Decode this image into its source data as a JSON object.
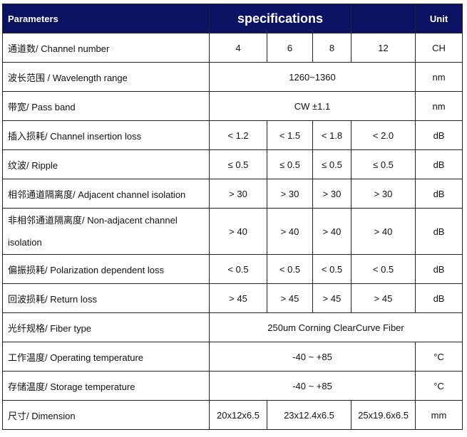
{
  "header": {
    "parameters": "Parameters",
    "specifications": "specifications",
    "unit": "Unit"
  },
  "rows": [
    {
      "param": "通道数/ Channel number",
      "values": [
        "4",
        "6",
        "8",
        "12"
      ],
      "unit": "CH"
    },
    {
      "param": "波长范围  / Wavelength range",
      "value": "1260~1360",
      "unit": "nm"
    },
    {
      "param": "带宽/ Pass band",
      "value": "CW ±1.1",
      "unit": "nm"
    },
    {
      "param": "插入损耗/ Channel insertion loss",
      "values": [
        "< 1.2",
        "< 1.5",
        "< 1.8",
        "< 2.0"
      ],
      "unit": "dB"
    },
    {
      "param": "纹波/ Ripple",
      "values": [
        "≤ 0.5",
        "≤ 0.5",
        "≤ 0.5",
        "≤ 0.5"
      ],
      "unit": "dB"
    },
    {
      "param": "相邻通道隔离度/ Adjacent channel isolation",
      "values": [
        "> 30",
        "> 30",
        "> 30",
        "> 30"
      ],
      "unit": "dB"
    },
    {
      "param": "非相邻通道隔离度/ Non-adjacent channel isolation",
      "values": [
        "> 40",
        "> 40",
        "> 40",
        "> 40"
      ],
      "unit": "dB"
    },
    {
      "param": "偏振损耗/ Polarization dependent loss",
      "values": [
        "< 0.5",
        "< 0.5",
        "< 0.5",
        "< 0.5"
      ],
      "unit": "dB"
    },
    {
      "param": "回波损耗/ Return loss",
      "values": [
        "> 45",
        "> 45",
        "> 45",
        "> 45"
      ],
      "unit": "dB"
    },
    {
      "param": "光纤规格/ Fiber type",
      "value": "250um Corning ClearCurve Fiber"
    },
    {
      "param": "工作温度/ Operating temperature",
      "value": "-40 ~ +85",
      "unit": "°C"
    },
    {
      "param": "存储温度/ Storage temperature",
      "value": "-40 ~ +85",
      "unit": "°C"
    },
    {
      "param": "尺寸/ Dimension",
      "values": [
        "20x12x6.5",
        "23x12.4x6.5",
        "25x19.6x6.5"
      ],
      "unit": "mm"
    }
  ]
}
